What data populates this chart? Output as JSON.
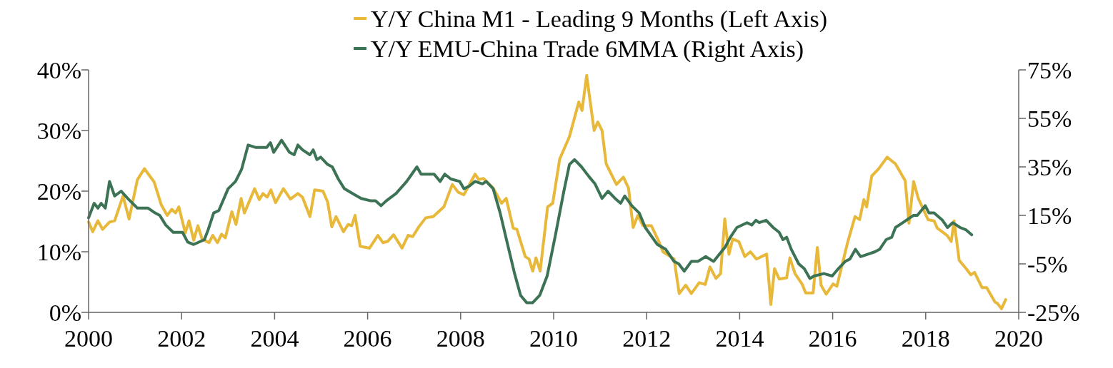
{
  "chart_data": {
    "type": "line",
    "legend": "top",
    "xlim": [
      2000,
      2020
    ],
    "xticks": [
      2000,
      2002,
      2004,
      2006,
      2008,
      2010,
      2012,
      2014,
      2016,
      2018,
      2020
    ],
    "ylim": [
      0,
      40
    ],
    "yticks": [
      {
        "value": 0,
        "label": "0%"
      },
      {
        "value": 10,
        "label": "10%"
      },
      {
        "value": 20,
        "label": "20%"
      },
      {
        "value": 30,
        "label": "30%"
      },
      {
        "value": 40,
        "label": "40%"
      }
    ],
    "y2lim": [
      -25,
      75
    ],
    "y2ticks": [
      {
        "value": -25,
        "label": "-25%"
      },
      {
        "value": -5,
        "label": "-5%"
      },
      {
        "value": 15,
        "label": "15%"
      },
      {
        "value": 35,
        "label": "35%"
      },
      {
        "value": 55,
        "label": "55%"
      },
      {
        "value": 75,
        "label": "75%"
      }
    ],
    "series": [
      {
        "name": "Y/Y China M1 - Leading 9 Months (Left Axis)",
        "color": "#e8b83a",
        "x": [
          2000.0,
          2000.09,
          2000.2,
          2000.3,
          2000.45,
          2000.56,
          2000.74,
          2000.87,
          2001.05,
          2001.2,
          2001.41,
          2001.56,
          2001.69,
          2001.79,
          2001.87,
          2001.94,
          2002.08,
          2002.16,
          2002.26,
          2002.35,
          2002.44,
          2002.59,
          2002.67,
          2002.77,
          2002.86,
          2002.94,
          2003.08,
          2003.17,
          2003.28,
          2003.35,
          2003.57,
          2003.67,
          2003.75,
          2003.84,
          2003.92,
          2004.02,
          2004.19,
          2004.34,
          2004.5,
          2004.6,
          2004.76,
          2004.86,
          2005.04,
          2005.14,
          2005.23,
          2005.32,
          2005.48,
          2005.58,
          2005.66,
          2005.73,
          2005.84,
          2006.04,
          2006.22,
          2006.33,
          2006.43,
          2006.56,
          2006.74,
          2006.87,
          2006.97,
          2007.1,
          2007.25,
          2007.41,
          2007.64,
          2007.82,
          2007.95,
          2008.07,
          2008.31,
          2008.39,
          2008.49,
          2008.7,
          2008.88,
          2008.98,
          2009.13,
          2009.21,
          2009.39,
          2009.47,
          2009.55,
          2009.62,
          2009.71,
          2009.87,
          2009.98,
          2010.13,
          2010.34,
          2010.54,
          2010.61,
          2010.71,
          2010.87,
          2010.95,
          2011.04,
          2011.13,
          2011.35,
          2011.5,
          2011.61,
          2011.71,
          2011.81,
          2011.92,
          2012.1,
          2012.25,
          2012.35,
          2012.59,
          2012.7,
          2012.84,
          2012.96,
          2013.13,
          2013.26,
          2013.36,
          2013.49,
          2013.59,
          2013.68,
          2013.77,
          2013.85,
          2013.98,
          2014.11,
          2014.23,
          2014.36,
          2014.58,
          2014.67,
          2014.75,
          2014.85,
          2015.01,
          2015.08,
          2015.19,
          2015.34,
          2015.42,
          2015.58,
          2015.67,
          2015.75,
          2015.86,
          2016.01,
          2016.09,
          2016.32,
          2016.48,
          2016.58,
          2016.67,
          2016.73,
          2016.84,
          2016.99,
          2017.17,
          2017.35,
          2017.56,
          2017.64,
          2017.74,
          2017.84,
          2018.05,
          2018.18,
          2018.25,
          2018.46,
          2018.55,
          2018.61,
          2018.72,
          2018.87,
          2018.97,
          2019.05,
          2019.21,
          2019.31,
          2019.49,
          2019.54,
          2019.63,
          2019.72
        ],
        "values": [
          14.9,
          13.3,
          15.1,
          13.7,
          14.9,
          15.1,
          19.2,
          15.4,
          21.9,
          23.7,
          21.5,
          17.8,
          16.0,
          17.0,
          16.4,
          17.4,
          13.1,
          15.1,
          11.9,
          14.3,
          12.1,
          11.5,
          12.7,
          11.5,
          12.9,
          12.3,
          16.6,
          14.5,
          18.8,
          16.4,
          20.4,
          18.6,
          19.6,
          19.0,
          20.2,
          18.1,
          20.4,
          18.7,
          19.6,
          19.0,
          15.8,
          20.2,
          20.0,
          18.2,
          14.1,
          15.8,
          13.3,
          14.5,
          14.3,
          16.0,
          10.9,
          10.6,
          12.7,
          11.5,
          11.7,
          12.8,
          10.6,
          12.7,
          12.5,
          14.1,
          15.6,
          15.8,
          17.4,
          21.1,
          19.8,
          19.4,
          22.8,
          21.9,
          22.1,
          20.5,
          18.0,
          18.8,
          13.9,
          13.7,
          9.2,
          8.8,
          6.8,
          9.0,
          6.8,
          17.4,
          18.0,
          25.3,
          29.0,
          34.7,
          33.3,
          39.1,
          30.0,
          31.4,
          30.0,
          24.5,
          21.1,
          22.3,
          20.5,
          14.0,
          16.0,
          14.3,
          14.3,
          11.9,
          10.0,
          8.8,
          3.1,
          4.5,
          3.1,
          4.9,
          4.6,
          7.5,
          5.6,
          6.4,
          15.4,
          9.6,
          12.1,
          11.7,
          9.2,
          10.0,
          8.8,
          9.6,
          1.3,
          7.2,
          5.5,
          5.7,
          9.0,
          6.4,
          4.7,
          3.2,
          3.2,
          10.7,
          4.5,
          3.0,
          4.7,
          4.3,
          11.5,
          15.8,
          15.3,
          18.6,
          17.4,
          22.5,
          23.7,
          25.6,
          24.5,
          21.7,
          14.7,
          21.6,
          18.8,
          15.3,
          15.1,
          13.9,
          12.7,
          11.7,
          15.1,
          8.6,
          7.2,
          6.2,
          6.6,
          4.1,
          4.1,
          1.7,
          1.5,
          0.6,
          2.1
        ]
      },
      {
        "name": "Y/Y EMU-China Trade 6MMA (Right Axis)",
        "color": "#3c7354",
        "axis": "y2",
        "x": [
          2000.0,
          2000.12,
          2000.2,
          2000.27,
          2000.36,
          2000.45,
          2000.56,
          2000.7,
          2000.84,
          2001.05,
          2001.28,
          2001.43,
          2001.53,
          2001.66,
          2001.82,
          2001.97,
          2002.02,
          2002.13,
          2002.26,
          2002.49,
          2002.57,
          2002.69,
          2002.8,
          2003.0,
          2003.16,
          2003.29,
          2003.43,
          2003.6,
          2003.75,
          2003.83,
          2003.91,
          2003.98,
          2004.15,
          2004.32,
          2004.42,
          2004.5,
          2004.6,
          2004.76,
          2004.83,
          2004.91,
          2004.99,
          2005.14,
          2005.24,
          2005.37,
          2005.5,
          2005.68,
          2005.86,
          2006.07,
          2006.17,
          2006.29,
          2006.4,
          2006.61,
          2006.84,
          2007.06,
          2007.15,
          2007.43,
          2007.56,
          2007.66,
          2007.79,
          2007.98,
          2008.07,
          2008.18,
          2008.31,
          2008.47,
          2008.55,
          2008.7,
          2008.85,
          2009.01,
          2009.16,
          2009.29,
          2009.42,
          2009.55,
          2009.7,
          2009.86,
          2010.04,
          2010.22,
          2010.34,
          2010.45,
          2010.6,
          2010.76,
          2010.89,
          2011.04,
          2011.17,
          2011.32,
          2011.44,
          2011.53,
          2011.68,
          2011.84,
          2011.97,
          2012.23,
          2012.41,
          2012.59,
          2012.69,
          2012.81,
          2012.96,
          2013.1,
          2013.27,
          2013.44,
          2013.69,
          2013.8,
          2013.94,
          2014.16,
          2014.26,
          2014.35,
          2014.42,
          2014.57,
          2014.72,
          2014.85,
          2014.93,
          2015.01,
          2015.11,
          2015.27,
          2015.39,
          2015.51,
          2015.6,
          2015.81,
          2015.99,
          2016.12,
          2016.27,
          2016.37,
          2016.49,
          2016.6,
          2016.76,
          2016.91,
          2017.01,
          2017.15,
          2017.27,
          2017.35,
          2017.51,
          2017.66,
          2017.74,
          2017.82,
          2017.99,
          2018.07,
          2018.18,
          2018.36,
          2018.47,
          2018.58,
          2018.74,
          2018.87,
          2018.99
        ],
        "values": [
          14,
          20,
          18,
          20,
          18,
          29,
          23,
          25,
          22,
          18,
          18,
          16,
          15,
          11,
          8,
          8,
          8,
          4,
          3,
          5,
          9,
          16,
          17,
          26,
          29,
          34,
          44,
          43,
          43,
          43,
          45,
          41,
          46,
          41,
          40,
          44,
          42,
          40,
          42,
          38,
          39,
          36,
          35,
          30,
          26,
          24,
          22,
          21,
          21,
          19,
          21,
          24,
          29,
          35,
          32,
          32,
          29,
          32,
          30,
          29,
          26,
          27,
          29,
          28,
          29,
          26,
          16,
          3,
          -9,
          -18,
          -21,
          -21,
          -18,
          -10,
          7,
          25,
          36,
          38,
          35,
          31,
          28,
          22,
          25,
          22,
          20,
          23,
          19,
          16,
          10,
          3,
          1,
          -4,
          -5,
          -8,
          -4,
          -4,
          -2,
          -4,
          2,
          6,
          10,
          12,
          11,
          13,
          12,
          13,
          10,
          8,
          5,
          6,
          1,
          -5,
          -7,
          -11,
          -10,
          -9,
          -10,
          -7,
          -4,
          -3,
          1,
          -2,
          -1,
          0,
          1,
          5,
          6,
          10,
          12,
          14,
          15,
          15,
          19,
          16,
          16,
          13,
          10,
          12,
          10,
          9,
          7
        ]
      }
    ]
  }
}
